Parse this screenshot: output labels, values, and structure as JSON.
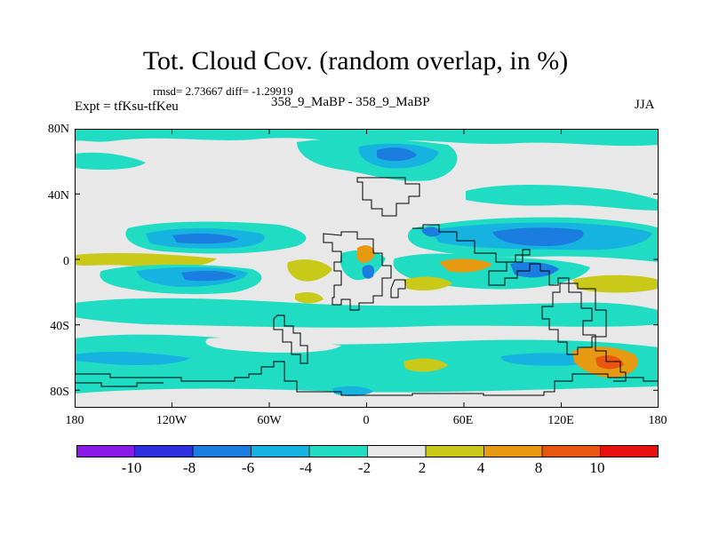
{
  "title": "Tot. Cloud Cov. (random overlap, in %)",
  "stats": "rmsd= 2.73667 diff= -1.29919",
  "expt": "Expt = tfKsu-tfKeu",
  "subtitle": "358_9_MaBP - 358_9_MaBP",
  "season": "JJA",
  "lat_ticks": [
    "80N",
    "40N",
    "0",
    "40S",
    "80S"
  ],
  "lon_ticks": [
    "180",
    "120W",
    "60W",
    "0",
    "60E",
    "120E",
    "180"
  ],
  "colorbar": {
    "labels": [
      "-10",
      "-8",
      "-6",
      "-4",
      "-2",
      "2",
      "4",
      "8",
      "10"
    ],
    "colors": [
      "#8a1be6",
      "#2d2fe0",
      "#1c7de0",
      "#17b3e0",
      "#1fdcc3",
      "#e8e8e8",
      "#c9c91a",
      "#e69a12",
      "#e8560f",
      "#e81010"
    ]
  },
  "map_colors": {
    "background": "#e8e8e8",
    "cyan": "#1fdcc3",
    "lightblue": "#17b3e0",
    "blue": "#1c7de0",
    "yellow": "#c9c91a",
    "orange": "#e69a12",
    "red": "#e8560f"
  }
}
